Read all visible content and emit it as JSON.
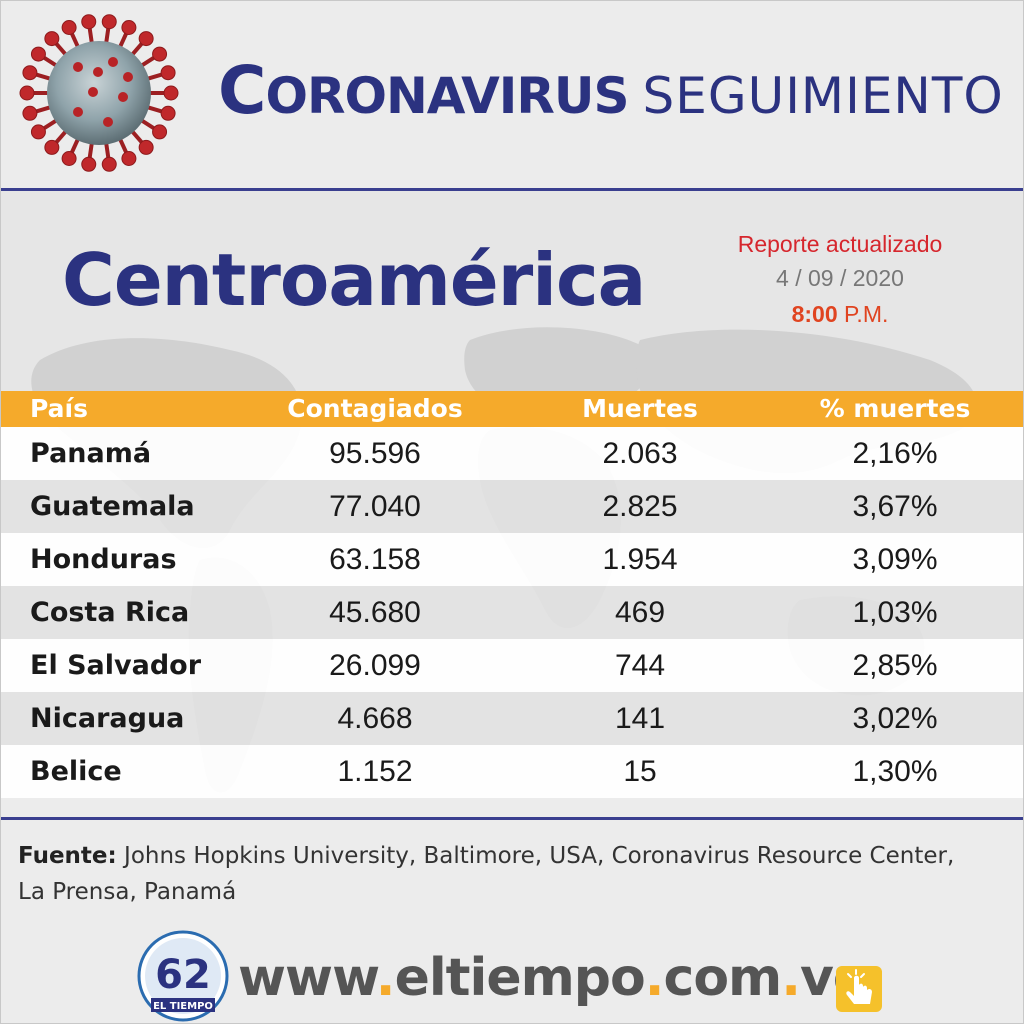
{
  "header": {
    "title_strong_cap": "C",
    "title_strong_rest": "ORONAVIRUS",
    "title_light": "SEGUIMIENTO",
    "virus_icon": "coronavirus-icon"
  },
  "region": {
    "name": "Centroamérica",
    "report_label": "Reporte actualizado",
    "report_date": "4 / 09 / 2020",
    "report_time": "8:00",
    "report_period": "P.M."
  },
  "table": {
    "headers": [
      "País",
      "Contagiados",
      "Muertes",
      "% muertes"
    ],
    "rows": [
      {
        "country": "Panamá",
        "cases": "95.596",
        "deaths": "2.063",
        "pct": "2,16%"
      },
      {
        "country": "Guatemala",
        "cases": "77.040",
        "deaths": "2.825",
        "pct": "3,67%"
      },
      {
        "country": "Honduras",
        "cases": "63.158",
        "deaths": "1.954",
        "pct": "3,09%"
      },
      {
        "country": "Costa Rica",
        "cases": "45.680",
        "deaths": "469",
        "pct": "1,03%"
      },
      {
        "country": "El Salvador",
        "cases": "26.099",
        "deaths": "744",
        "pct": "2,85%"
      },
      {
        "country": "Nicaragua",
        "cases": "4.668",
        "deaths": "141",
        "pct": "3,02%"
      },
      {
        "country": "Belice",
        "cases": "1.152",
        "deaths": "15",
        "pct": "1,30%"
      }
    ]
  },
  "footer": {
    "source_label": "Fuente:",
    "source_text": "Johns Hopkins University, Baltimore, USA, Coronavirus Resource Center, La Prensa, Panamá",
    "logo_number": "62",
    "logo_name": "EL TIEMPO",
    "url_parts": [
      "www",
      ".",
      "eltiempo",
      ".",
      "com",
      ".",
      "ve"
    ],
    "hand_icon": "pointer-hand-icon"
  },
  "colors": {
    "navy": "#2b3280",
    "orange": "#f5aa2b",
    "red": "#d6262d"
  }
}
